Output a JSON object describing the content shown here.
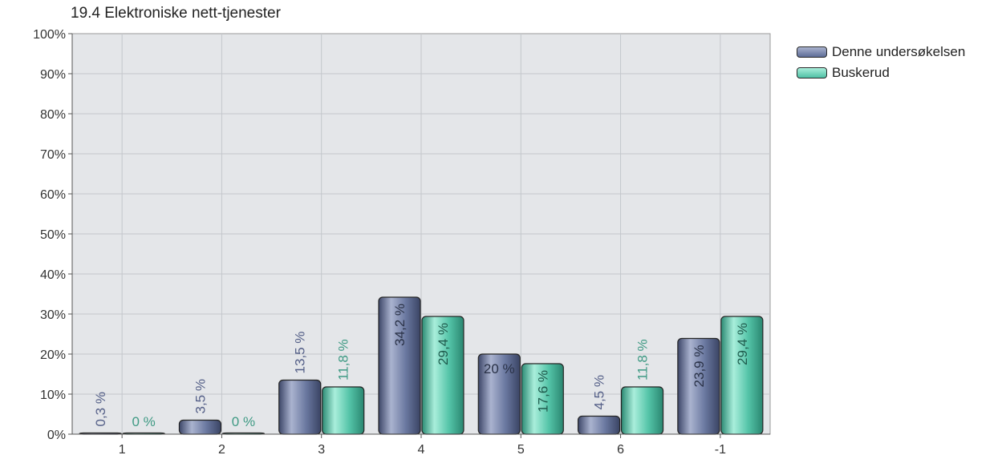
{
  "chart_data": {
    "type": "bar",
    "title": "19.4 Elektroniske nett-tjenester",
    "xlabel": "",
    "ylabel": "",
    "categories": [
      "1",
      "2",
      "3",
      "4",
      "5",
      "6",
      "-1"
    ],
    "series": [
      {
        "name": "Denne undersøkelsen",
        "values": [
          0.3,
          3.5,
          13.5,
          34.2,
          20,
          4.5,
          23.9
        ],
        "labels": [
          "0,3 %",
          "3,5 %",
          "13,5 %",
          "34,2 %",
          "20 %",
          "4,5 %",
          "23,9 %"
        ],
        "color": "#5d6c97"
      },
      {
        "name": "Buskerud",
        "values": [
          0,
          0,
          11.8,
          29.4,
          17.6,
          11.8,
          29.4
        ],
        "labels": [
          "0 %",
          "0 %",
          "11,8 %",
          "29,4 %",
          "17,6 %",
          "11,8 %",
          "29,4 %"
        ],
        "color": "#4fc1a5"
      }
    ],
    "ylim": [
      0,
      100
    ],
    "yticks": [
      "0%",
      "10%",
      "20%",
      "30%",
      "40%",
      "50%",
      "60%",
      "70%",
      "80%",
      "90%",
      "100%"
    ],
    "grid": true,
    "legend": "top-right"
  }
}
